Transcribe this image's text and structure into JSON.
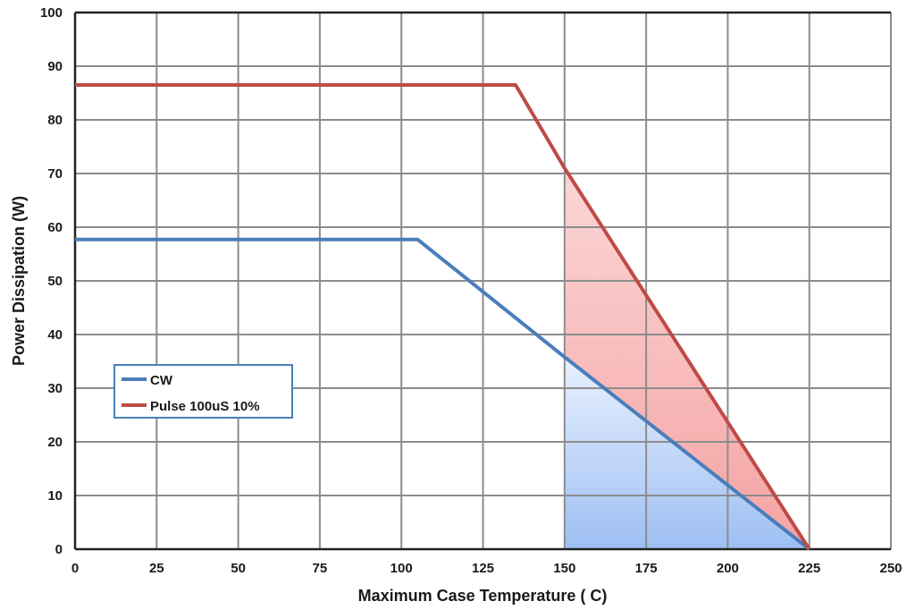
{
  "chart_data": {
    "type": "line",
    "xlabel": "Maximum Case Temperature ( C)",
    "ylabel": "Power Dissipation (W)",
    "xlim": [
      0,
      250
    ],
    "ylim": [
      0,
      100
    ],
    "xticks": [
      0,
      25,
      50,
      75,
      100,
      125,
      150,
      175,
      200,
      225,
      250
    ],
    "yticks": [
      0,
      10,
      20,
      30,
      40,
      50,
      60,
      70,
      80,
      90,
      100
    ],
    "grid": true,
    "legend_position": "middle-left",
    "series": [
      {
        "name": "CW",
        "color": "#4a7ebb",
        "fill_color": "#a9c8f5",
        "x": [
          0,
          105,
          150,
          225
        ],
        "y": [
          57.7,
          57.7,
          35.8,
          0
        ]
      },
      {
        "name": "Pulse 100uS 10%",
        "color": "#be4b48",
        "fill_color": "#f7a8a8",
        "x": [
          0,
          135,
          150,
          225
        ],
        "y": [
          86.5,
          86.5,
          71.0,
          0
        ]
      }
    ],
    "shaded_region": {
      "x_start": 150,
      "x_end": 225
    }
  }
}
